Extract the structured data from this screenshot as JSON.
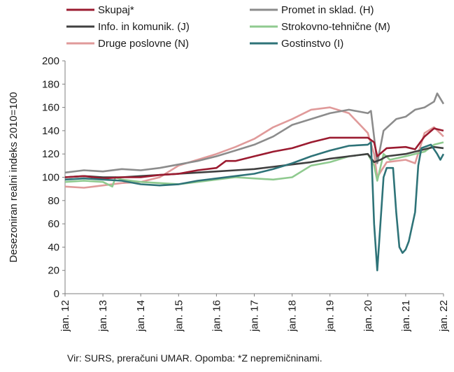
{
  "chart_data": {
    "type": "line",
    "xlabel": "",
    "ylabel": "Desezoniran realni indeks 2010=100",
    "ylim": [
      0,
      200
    ],
    "yticks": [
      0,
      20,
      40,
      60,
      80,
      100,
      120,
      140,
      160,
      180,
      200
    ],
    "x_tick_labels": [
      "jan. 12",
      "jan. 13",
      "jan. 14",
      "jan. 15",
      "jan. 16",
      "jan. 17",
      "jan. 18",
      "jan. 19",
      "jan. 20",
      "jan. 21",
      "jan. 22"
    ],
    "legend": "top, two columns",
    "grid": false,
    "series": [
      {
        "name": "Skupaj*",
        "color": "#9b1b30",
        "points": [
          [
            "2012-01",
            100
          ],
          [
            "2012-07",
            101
          ],
          [
            "2013-01",
            99
          ],
          [
            "2013-07",
            100
          ],
          [
            "2014-01",
            100
          ],
          [
            "2014-07",
            102
          ],
          [
            "2015-01",
            103
          ],
          [
            "2015-07",
            106
          ],
          [
            "2016-01",
            108
          ],
          [
            "2016-04",
            114
          ],
          [
            "2016-07",
            114
          ],
          [
            "2017-01",
            118
          ],
          [
            "2017-07",
            122
          ],
          [
            "2018-01",
            125
          ],
          [
            "2018-07",
            130
          ],
          [
            "2019-01",
            134
          ],
          [
            "2019-07",
            134
          ],
          [
            "2020-01",
            134
          ],
          [
            "2020-03",
            130
          ],
          [
            "2020-04",
            118
          ],
          [
            "2020-07",
            125
          ],
          [
            "2021-01",
            126
          ],
          [
            "2021-04",
            124
          ],
          [
            "2021-07",
            135
          ],
          [
            "2021-10",
            142
          ],
          [
            "2022-01",
            140
          ]
        ]
      },
      {
        "name": "Promet in sklad. (H)",
        "color": "#8c8c8c",
        "points": [
          [
            "2012-01",
            104
          ],
          [
            "2012-07",
            106
          ],
          [
            "2013-01",
            105
          ],
          [
            "2013-07",
            107
          ],
          [
            "2014-01",
            106
          ],
          [
            "2014-07",
            108
          ],
          [
            "2015-01",
            111
          ],
          [
            "2015-07",
            114
          ],
          [
            "2016-01",
            118
          ],
          [
            "2016-07",
            123
          ],
          [
            "2017-01",
            128
          ],
          [
            "2017-07",
            135
          ],
          [
            "2018-01",
            145
          ],
          [
            "2018-07",
            150
          ],
          [
            "2019-01",
            155
          ],
          [
            "2019-07",
            158
          ],
          [
            "2020-01",
            155
          ],
          [
            "2020-02",
            157
          ],
          [
            "2020-04",
            112
          ],
          [
            "2020-06",
            140
          ],
          [
            "2020-08",
            145
          ],
          [
            "2020-10",
            150
          ],
          [
            "2021-01",
            152
          ],
          [
            "2021-04",
            158
          ],
          [
            "2021-07",
            160
          ],
          [
            "2021-10",
            165
          ],
          [
            "2021-11",
            172
          ],
          [
            "2022-01",
            163
          ]
        ]
      },
      {
        "name": "Info. in komunik. (J)",
        "color": "#404040",
        "points": [
          [
            "2012-01",
            100
          ],
          [
            "2012-07",
            101
          ],
          [
            "2013-01",
            100
          ],
          [
            "2013-07",
            100
          ],
          [
            "2014-01",
            101
          ],
          [
            "2014-07",
            102
          ],
          [
            "2015-01",
            103
          ],
          [
            "2015-07",
            104
          ],
          [
            "2016-01",
            105
          ],
          [
            "2016-07",
            106
          ],
          [
            "2017-01",
            107
          ],
          [
            "2017-07",
            109
          ],
          [
            "2018-01",
            111
          ],
          [
            "2018-07",
            113
          ],
          [
            "2019-01",
            116
          ],
          [
            "2019-07",
            118
          ],
          [
            "2020-01",
            120
          ],
          [
            "2020-03",
            113
          ],
          [
            "2020-05",
            115
          ],
          [
            "2020-07",
            118
          ],
          [
            "2021-01",
            120
          ],
          [
            "2021-07",
            124
          ],
          [
            "2021-10",
            126
          ],
          [
            "2022-01",
            125
          ]
        ]
      },
      {
        "name": "Strokovno-tehnične (M)",
        "color": "#8fca8f",
        "points": [
          [
            "2012-01",
            96
          ],
          [
            "2012-07",
            97
          ],
          [
            "2013-01",
            96
          ],
          [
            "2013-04",
            92
          ],
          [
            "2013-05",
            100
          ],
          [
            "2013-07",
            98
          ],
          [
            "2014-01",
            96
          ],
          [
            "2014-07",
            95
          ],
          [
            "2015-01",
            94
          ],
          [
            "2015-07",
            96
          ],
          [
            "2016-01",
            98
          ],
          [
            "2016-07",
            100
          ],
          [
            "2017-01",
            99
          ],
          [
            "2017-07",
            98
          ],
          [
            "2018-01",
            100
          ],
          [
            "2018-07",
            110
          ],
          [
            "2019-01",
            113
          ],
          [
            "2019-07",
            118
          ],
          [
            "2020-01",
            120
          ],
          [
            "2020-03",
            110
          ],
          [
            "2020-04",
            97
          ],
          [
            "2020-06",
            120
          ],
          [
            "2020-08",
            115
          ],
          [
            "2021-01",
            118
          ],
          [
            "2021-07",
            122
          ],
          [
            "2021-10",
            128
          ],
          [
            "2022-01",
            130
          ]
        ]
      },
      {
        "name": "Druge poslovne (N)",
        "color": "#e09a9a",
        "points": [
          [
            "2012-01",
            92
          ],
          [
            "2012-07",
            91
          ],
          [
            "2013-01",
            93
          ],
          [
            "2013-07",
            95
          ],
          [
            "2014-01",
            96
          ],
          [
            "2014-07",
            100
          ],
          [
            "2015-01",
            110
          ],
          [
            "2015-07",
            115
          ],
          [
            "2016-01",
            120
          ],
          [
            "2016-07",
            126
          ],
          [
            "2017-01",
            133
          ],
          [
            "2017-07",
            143
          ],
          [
            "2018-01",
            150
          ],
          [
            "2018-07",
            158
          ],
          [
            "2019-01",
            160
          ],
          [
            "2019-07",
            155
          ],
          [
            "2020-01",
            138
          ],
          [
            "2020-03",
            120
          ],
          [
            "2020-04",
            100
          ],
          [
            "2020-07",
            113
          ],
          [
            "2021-01",
            115
          ],
          [
            "2021-04",
            112
          ],
          [
            "2021-07",
            138
          ],
          [
            "2021-10",
            143
          ],
          [
            "2022-01",
            135
          ]
        ]
      },
      {
        "name": "Gostinstvo (I)",
        "color": "#2e7378",
        "points": [
          [
            "2012-01",
            98
          ],
          [
            "2012-07",
            99
          ],
          [
            "2013-01",
            98
          ],
          [
            "2013-07",
            97
          ],
          [
            "2014-01",
            94
          ],
          [
            "2014-07",
            93
          ],
          [
            "2015-01",
            94
          ],
          [
            "2015-07",
            97
          ],
          [
            "2016-01",
            99
          ],
          [
            "2016-07",
            101
          ],
          [
            "2017-01",
            103
          ],
          [
            "2017-07",
            107
          ],
          [
            "2018-01",
            112
          ],
          [
            "2018-07",
            118
          ],
          [
            "2019-01",
            123
          ],
          [
            "2019-07",
            127
          ],
          [
            "2020-01",
            128
          ],
          [
            "2020-02",
            130
          ],
          [
            "2020-03",
            60
          ],
          [
            "2020-04",
            20
          ],
          [
            "2020-05",
            60
          ],
          [
            "2020-06",
            100
          ],
          [
            "2020-07",
            108
          ],
          [
            "2020-09",
            108
          ],
          [
            "2020-10",
            70
          ],
          [
            "2020-11",
            40
          ],
          [
            "2020-12",
            35
          ],
          [
            "2021-01",
            38
          ],
          [
            "2021-02",
            45
          ],
          [
            "2021-04",
            70
          ],
          [
            "2021-05",
            110
          ],
          [
            "2021-06",
            125
          ],
          [
            "2021-09",
            128
          ],
          [
            "2021-11",
            120
          ],
          [
            "2021-12",
            115
          ],
          [
            "2022-01",
            120
          ]
        ]
      }
    ]
  },
  "source": "Vir: SURS, preračuni UMAR. Opomba: *Z nepremičninami."
}
